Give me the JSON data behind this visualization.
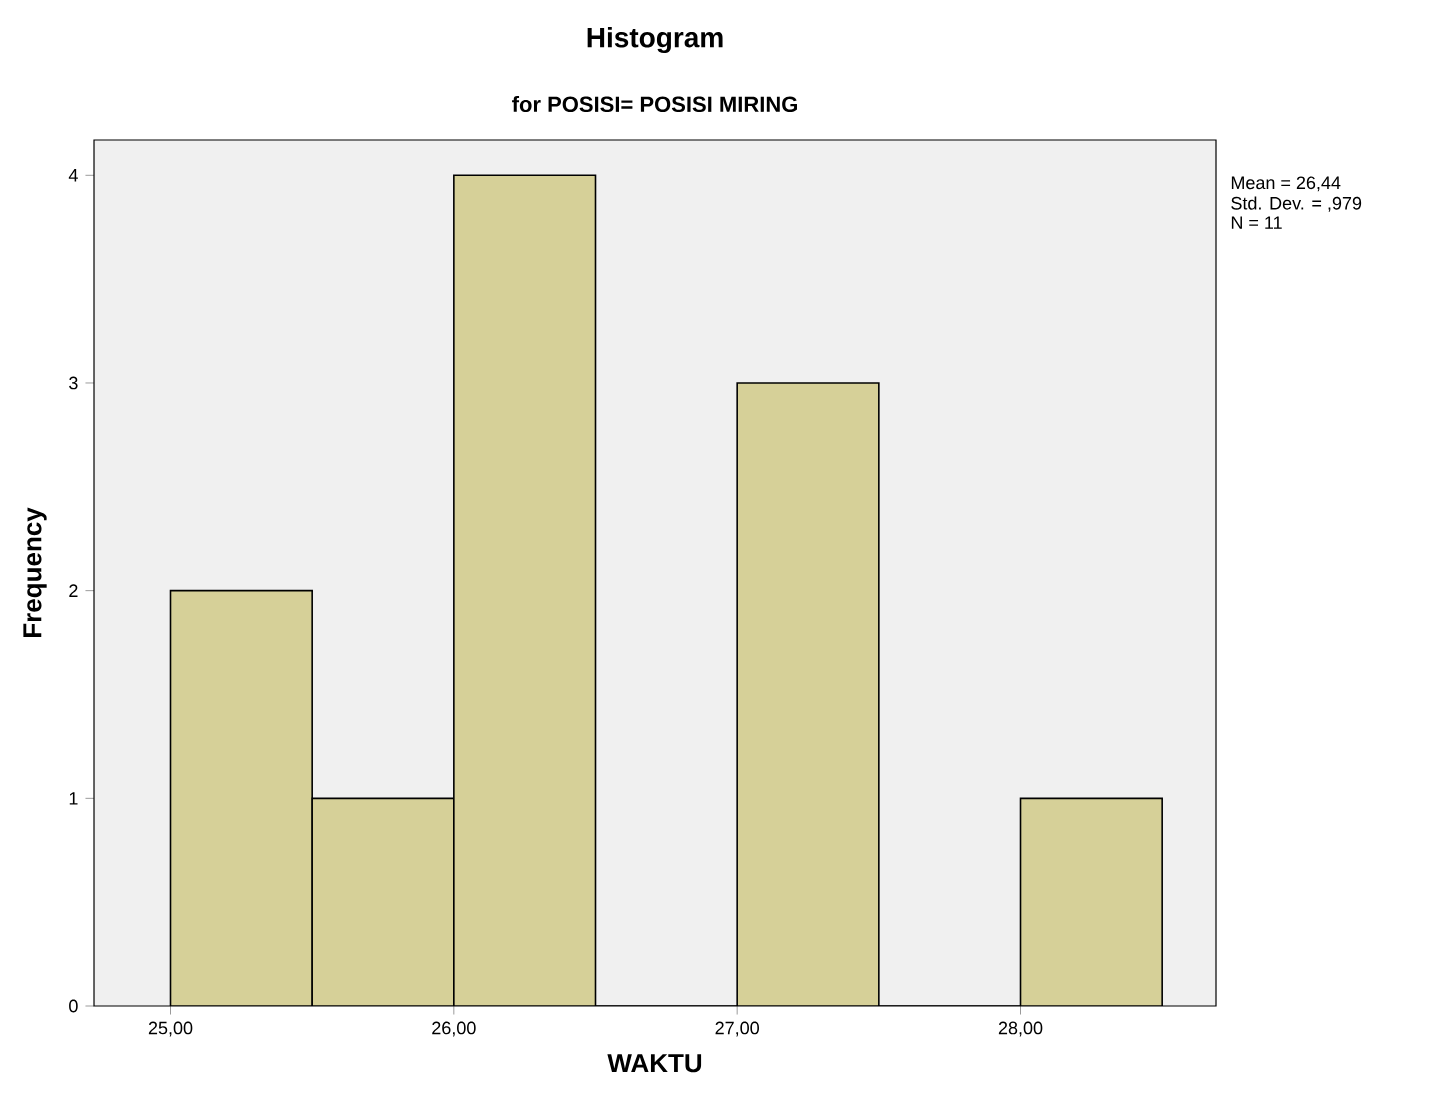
{
  "chart_data": {
    "type": "histogram",
    "title": "Histogram",
    "subtitle": "for POSISI= POSISI MIRING",
    "xlabel": "WAKTU",
    "ylabel": "Frequency",
    "bins": [
      25.0,
      25.5,
      26.0,
      26.5,
      27.0,
      27.5,
      28.0,
      28.5
    ],
    "values": [
      2,
      1,
      4,
      0,
      3,
      0,
      1
    ],
    "color": "#d6d098",
    "xlim": [
      24.73,
      28.69
    ],
    "ylim": [
      0,
      4.17
    ],
    "xticks": [
      {
        "value": 25,
        "label": "25,00"
      },
      {
        "value": 26,
        "label": "26,00"
      },
      {
        "value": 27,
        "label": "27,00"
      },
      {
        "value": 28,
        "label": "28,00"
      }
    ],
    "yticks": [
      0,
      1,
      2,
      3,
      4
    ],
    "annotations": [
      "Mean = 26,44",
      "Std. Dev. = ,979",
      "N = 11"
    ]
  }
}
